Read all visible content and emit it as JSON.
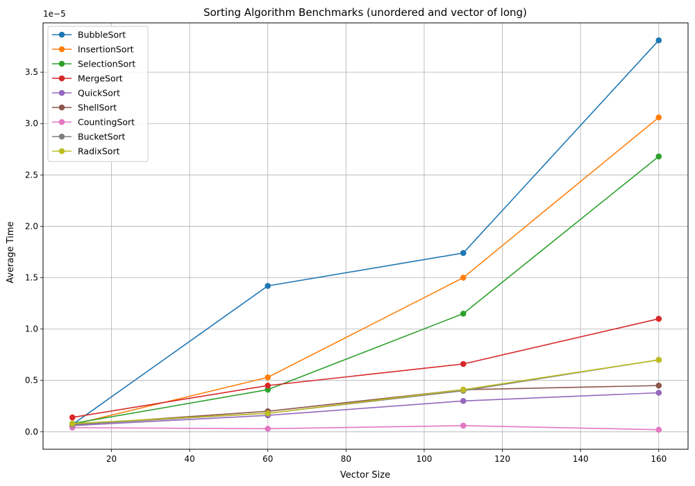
{
  "chart_data": {
    "type": "line",
    "title": "Sorting Algorithm Benchmarks (unordered and vector of long)",
    "xlabel": "Vector Size",
    "ylabel": "Average Time",
    "y_scale_label": "1e−5",
    "y_multiplier": 1e-05,
    "xlim": [
      2.5,
      167.5
    ],
    "ylim": [
      -0.17,
      3.98
    ],
    "xticks": [
      20,
      40,
      60,
      80,
      100,
      120,
      140,
      160
    ],
    "yticks": [
      0.0,
      0.5,
      1.0,
      1.5,
      2.0,
      2.5,
      3.0,
      3.5
    ],
    "ytick_labels": [
      "0.0",
      "0.5",
      "1.0",
      "1.5",
      "2.0",
      "2.5",
      "3.0",
      "3.5"
    ],
    "grid": true,
    "legend_position": "upper-left",
    "marker": "circle",
    "x": [
      10,
      60,
      110,
      160
    ],
    "series": [
      {
        "name": "BubbleSort",
        "color": "#1f77b4",
        "values": [
          0.07,
          1.42,
          1.74,
          3.81
        ]
      },
      {
        "name": "InsertionSort",
        "color": "#ff7f0e",
        "values": [
          0.07,
          0.53,
          1.5,
          3.06
        ]
      },
      {
        "name": "SelectionSort",
        "color": "#2ca02c",
        "values": [
          0.08,
          0.41,
          1.15,
          2.68
        ]
      },
      {
        "name": "MergeSort",
        "color": "#d62728",
        "values": [
          0.14,
          0.45,
          0.66,
          1.1
        ]
      },
      {
        "name": "QuickSort",
        "color": "#9467bd",
        "values": [
          0.06,
          0.16,
          0.3,
          0.38
        ]
      },
      {
        "name": "ShellSort",
        "color": "#8c564b",
        "values": [
          0.07,
          0.2,
          0.41,
          0.45
        ]
      },
      {
        "name": "CountingSort",
        "color": "#e377c2",
        "values": [
          0.04,
          0.03,
          0.06,
          0.02
        ]
      },
      {
        "name": "BucketSort",
        "color": "#7f7f7f",
        "values": [
          0.07,
          0.18,
          0.4,
          0.7
        ]
      },
      {
        "name": "RadixSort",
        "color": "#bcbd22",
        "values": [
          0.08,
          0.18,
          0.41,
          0.7
        ]
      }
    ]
  }
}
